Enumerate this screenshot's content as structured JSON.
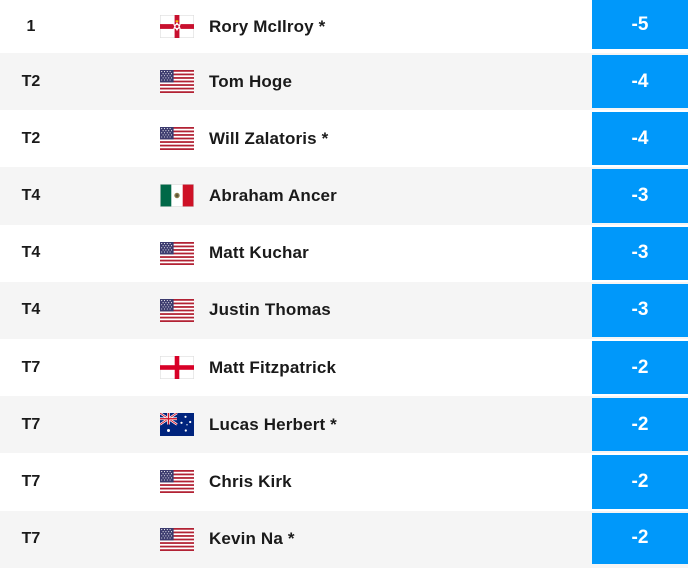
{
  "leaderboard": {
    "accent_color": "#0098fa",
    "row_alt_color": "#f5f5f5",
    "rows": [
      {
        "pos": "1",
        "flag": "northern-ireland",
        "name": "Rory McIlroy *",
        "score": "-5"
      },
      {
        "pos": "T2",
        "flag": "usa",
        "name": "Tom Hoge",
        "score": "-4"
      },
      {
        "pos": "T2",
        "flag": "usa",
        "name": "Will Zalatoris *",
        "score": "-4"
      },
      {
        "pos": "T4",
        "flag": "mexico",
        "name": "Abraham Ancer",
        "score": "-3"
      },
      {
        "pos": "T4",
        "flag": "usa",
        "name": "Matt Kuchar",
        "score": "-3"
      },
      {
        "pos": "T4",
        "flag": "usa",
        "name": "Justin Thomas",
        "score": "-3"
      },
      {
        "pos": "T7",
        "flag": "england",
        "name": "Matt Fitzpatrick",
        "score": "-2"
      },
      {
        "pos": "T7",
        "flag": "australia",
        "name": "Lucas Herbert *",
        "score": "-2"
      },
      {
        "pos": "T7",
        "flag": "usa",
        "name": "Chris Kirk",
        "score": "-2"
      },
      {
        "pos": "T7",
        "flag": "usa",
        "name": "Kevin Na *",
        "score": "-2"
      }
    ]
  }
}
